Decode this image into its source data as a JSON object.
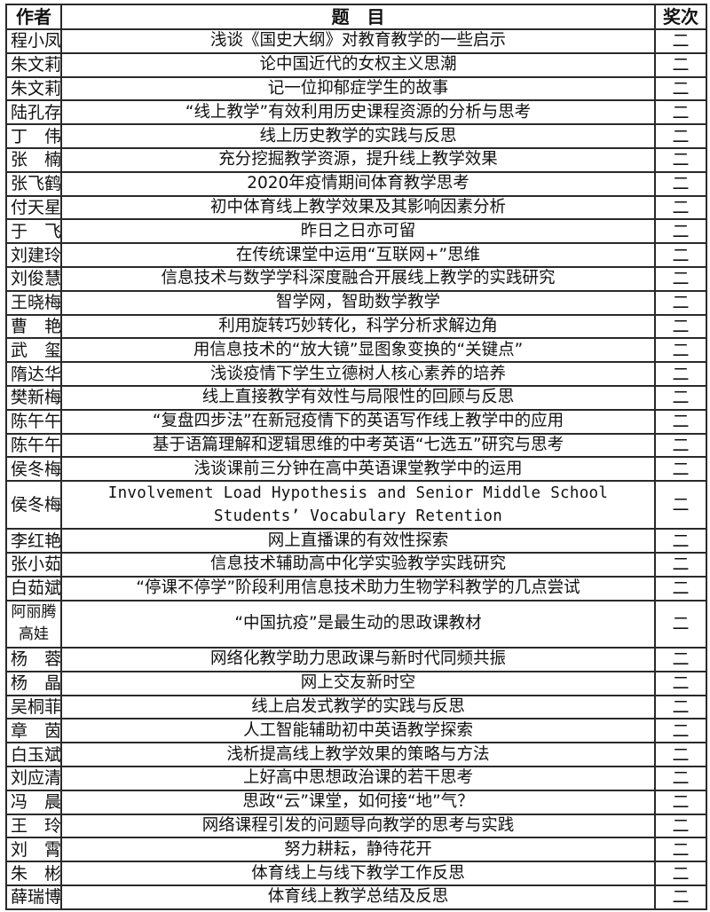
{
  "header": {
    "author": "作者",
    "title": "题　目",
    "award": "奖次"
  },
  "rows": [
    {
      "author": "程小凤",
      "title": "浅谈《国史大纲》对教育教学的一些启示",
      "award": "二"
    },
    {
      "author": "朱文莉",
      "title": "论中国近代的女权主义思潮",
      "award": "二"
    },
    {
      "author": "朱文莉",
      "title": "记一位抑郁症学生的故事",
      "award": "二"
    },
    {
      "author": "陆孔存",
      "title": "“线上教学”有效利用历史课程资源的分析与思考",
      "award": "二"
    },
    {
      "author": "丁　伟",
      "title": "线上历史教学的实践与反思",
      "award": "二"
    },
    {
      "author": "张　楠",
      "title": "充分挖掘教学资源，提升线上教学效果",
      "award": "二"
    },
    {
      "author": "张飞鹤",
      "title": "2020年疫情期间体育教学思考",
      "award": "二"
    },
    {
      "author": "付天星",
      "title": "初中体育线上教学效果及其影响因素分析",
      "award": "二"
    },
    {
      "author": "于　飞",
      "title": "昨日之日亦可留",
      "award": "二"
    },
    {
      "author": "刘建玲",
      "title": "在传统课堂中运用“互联网+”思维",
      "award": "二"
    },
    {
      "author": "刘俊慧",
      "title": "信息技术与数学学科深度融合开展线上教学的实践研究",
      "award": "二"
    },
    {
      "author": "王晓梅",
      "title": "智学网，智助数学教学",
      "award": "二"
    },
    {
      "author": "曹　艳",
      "title": "利用旋转巧妙转化，科学分析求解边角",
      "award": "二"
    },
    {
      "author": "武　玺",
      "title": "用信息技术的“放大镜”显图象变换的“关键点”",
      "award": "二"
    },
    {
      "author": "隋达华",
      "title": "浅谈疫情下学生立德树人核心素养的培养",
      "award": "二"
    },
    {
      "author": "樊新梅",
      "title": "线上直接教学有效性与局限性的回顾与反思",
      "award": "二"
    },
    {
      "author": "陈午午",
      "title": "“复盘四步法”在新冠疫情下的英语写作线上教学中的应用",
      "award": "二"
    },
    {
      "author": "陈午午",
      "title": "基于语篇理解和逻辑思维的中考英语“七选五”研究与思考",
      "award": "二"
    },
    {
      "author": "侯冬梅",
      "title": "浅谈课前三分钟在高中英语课堂教学中的运用",
      "award": "二"
    },
    {
      "author": "侯冬梅",
      "title": "Involvement Load Hypothesis and Senior Middle School Students’ Vocabulary Retention",
      "award": "二",
      "tall": true,
      "mono": true
    },
    {
      "author": "李红艳",
      "title": "网上直播课的有效性探索",
      "award": "二"
    },
    {
      "author": "张小茹",
      "title": "信息技术辅助高中化学实验教学实践研究",
      "award": "二"
    },
    {
      "author": "白茹斌",
      "title": "“停课不停学”阶段利用信息技术助力生物学科教学的几点尝试",
      "award": "二"
    },
    {
      "author": "阿丽腾高娃",
      "title": "“中国抗疫”是最生动的思政课教材",
      "award": "二",
      "tall": true
    },
    {
      "author": "杨　蓉",
      "title": "网络化教学助力思政课与新时代同频共振",
      "award": "二"
    },
    {
      "author": "杨　晶",
      "title": "网上交友新时空",
      "award": "二"
    },
    {
      "author": "吴桐菲",
      "title": "线上启发式教学的实践与反思",
      "award": "二"
    },
    {
      "author": "章　茵",
      "title": "人工智能辅助初中英语教学探索",
      "award": "二"
    },
    {
      "author": "白玉斌",
      "title": "浅析提高线上教学效果的策略与方法",
      "award": "二"
    },
    {
      "author": "刘应清",
      "title": "上好高中思想政治课的若干思考",
      "award": "二"
    },
    {
      "author": "冯　晨",
      "title": "思政“云”课堂，如何接“地”气？",
      "award": "二"
    },
    {
      "author": "王　玲",
      "title": "网络课程引发的问题导向教学的思考与实践",
      "award": "二"
    },
    {
      "author": "刘　霄",
      "title": "努力耕耘，静待花开",
      "award": "二"
    },
    {
      "author": "朱　彬",
      "title": "体育线上与线下教学工作反思",
      "award": "二"
    },
    {
      "author": "薛瑞博",
      "title": "体育线上教学总结及反思",
      "award": "二"
    }
  ]
}
